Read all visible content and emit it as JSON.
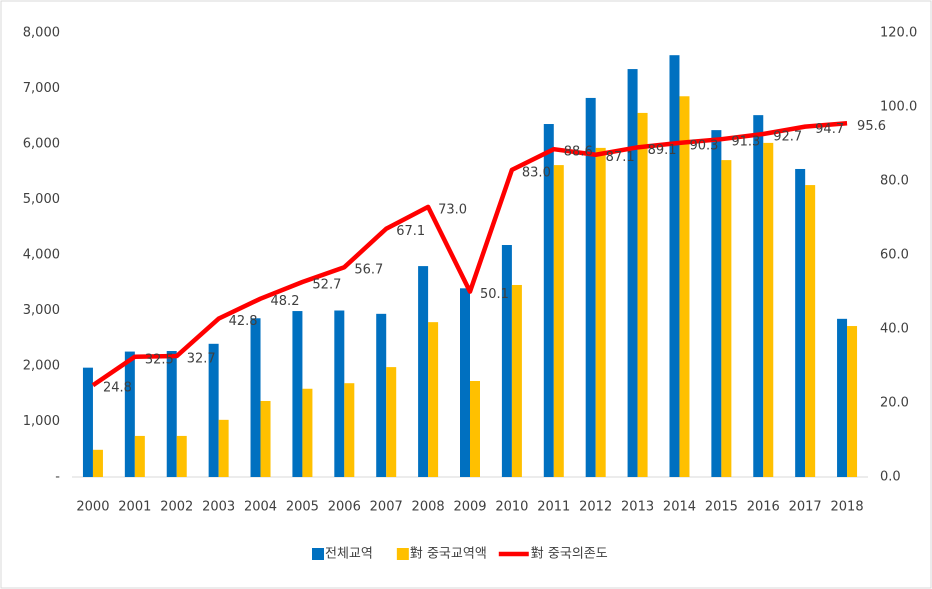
{
  "chart_data": {
    "type": "bar",
    "categories": [
      "2000",
      "2001",
      "2002",
      "2003",
      "2004",
      "2005",
      "2006",
      "2007",
      "2008",
      "2009",
      "2010",
      "2011",
      "2012",
      "2013",
      "2014",
      "2015",
      "2016",
      "2017",
      "2018"
    ],
    "series": [
      {
        "name": "전체교역",
        "color": "#0070c0",
        "values": [
          1970,
          2260,
          2270,
          2400,
          2860,
          2990,
          3000,
          2940,
          3800,
          3400,
          4180,
          6360,
          6830,
          7350,
          7600,
          6250,
          6520,
          5550,
          2850
        ]
      },
      {
        "name": "對 중국교역액",
        "color": "#ffc000",
        "values": [
          490,
          740,
          740,
          1030,
          1370,
          1590,
          1690,
          1980,
          2790,
          1730,
          3460,
          5620,
          5930,
          6560,
          6860,
          5710,
          6020,
          5260,
          2720
        ]
      },
      {
        "name": "對 중국의존도",
        "color": "#ff0000",
        "type": "line",
        "axis": "y2",
        "values": [
          24.8,
          32.5,
          32.7,
          42.8,
          48.2,
          52.7,
          56.7,
          67.1,
          73.0,
          50.1,
          83.0,
          88.6,
          87.1,
          89.1,
          90.3,
          91.3,
          92.7,
          94.7,
          95.6
        ],
        "value_labels": [
          "24.8",
          "32.5",
          "32.7",
          "42.8",
          "48.2",
          "52.7",
          "56.7",
          "67.1",
          "73.0",
          "50.1",
          "83.0",
          "88.6",
          "87.1",
          "89.1",
          "90.3",
          "91.3",
          "92.7",
          "94.7",
          "95.6"
        ]
      }
    ],
    "ylim": [
      0,
      8000
    ],
    "yticks": [
      {
        "value": 0,
        "label": "-"
      },
      {
        "value": 1000,
        "label": "1,000"
      },
      {
        "value": 2000,
        "label": "2,000"
      },
      {
        "value": 3000,
        "label": "3,000"
      },
      {
        "value": 4000,
        "label": "4,000"
      },
      {
        "value": 5000,
        "label": "5,000"
      },
      {
        "value": 6000,
        "label": "6,000"
      },
      {
        "value": 7000,
        "label": "7,000"
      },
      {
        "value": 8000,
        "label": "8,000"
      }
    ],
    "y2lim": [
      0,
      120
    ],
    "y2ticks": [
      {
        "value": 0,
        "label": "0.0"
      },
      {
        "value": 20,
        "label": "20.0"
      },
      {
        "value": 40,
        "label": "40.0"
      },
      {
        "value": 60,
        "label": "60.0"
      },
      {
        "value": 80,
        "label": "80.0"
      },
      {
        "value": 100,
        "label": "100.0"
      },
      {
        "value": 120,
        "label": "120.0"
      }
    ],
    "legend": "bottom"
  }
}
